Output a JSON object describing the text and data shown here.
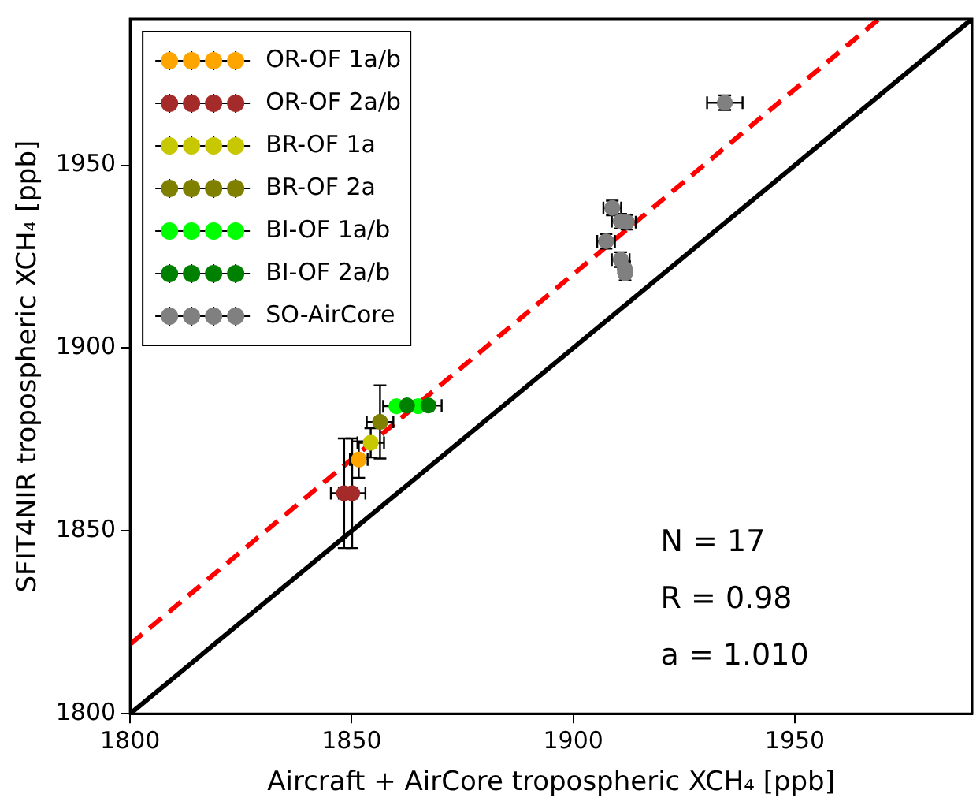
{
  "chart_data": {
    "type": "scatter",
    "xlabel": "Aircraft + AirCore tropospheric XCH₄ [ppb]",
    "ylabel": "SFIT4NIR tropospheric XCH₄ [ppb]",
    "xlim": [
      1800,
      1990
    ],
    "ylim": [
      1800,
      1990
    ],
    "xticks": [
      1800,
      1850,
      1900,
      1950
    ],
    "yticks": [
      1800,
      1850,
      1900,
      1950
    ],
    "grid": false,
    "legend": "top left",
    "marker": "circle",
    "series": [
      {
        "name": "OR-OF 1a/b",
        "color": "#ffa500",
        "x": [
          1851.6
        ],
        "values": [
          1869.5
        ],
        "errors": [
          5
        ],
        "xerrors": [
          2
        ]
      },
      {
        "name": "OR-OF 2a/b",
        "color": "#a52a2a",
        "x": [
          1848.3,
          1850.1
        ],
        "values": [
          1860.3,
          1860.3
        ],
        "errors": [
          15,
          15
        ],
        "xerrors": [
          3,
          3
        ]
      },
      {
        "name": "BR-OF 1a",
        "color": "#c8c800",
        "x": [
          1854.3
        ],
        "values": [
          1874.1
        ],
        "errors": [
          4
        ],
        "xerrors": [
          3
        ]
      },
      {
        "name": "BR-OF 2a",
        "color": "#808000",
        "x": [
          1856.4
        ],
        "values": [
          1879.8
        ],
        "errors": [
          10
        ],
        "xerrors": [
          3
        ]
      },
      {
        "name": "BI-OF 1a/b",
        "color": "#00ff00",
        "x": [
          1860.1,
          1865
        ],
        "values": [
          1884.1,
          1884.1
        ],
        "xerrors": [
          3,
          null
        ]
      },
      {
        "name": "BI-OF 2a/b",
        "color": "#008000",
        "x": [
          1862.5,
          1867.3
        ],
        "values": [
          1884.3,
          1884.3
        ],
        "xerrors": [
          null,
          3
        ]
      },
      {
        "name": "SO-AirCore",
        "color": "#808080",
        "x": [
          1934.2,
          1908.8,
          1910.7,
          1912.1,
          1907.4,
          1910.7,
          1911.6,
          1911.7
        ],
        "values": [
          1967.1,
          1938.3,
          1934.7,
          1934.4,
          1929.2,
          1924.2,
          1921.7,
          1920.5
        ],
        "errors": [
          2,
          2,
          2,
          2,
          2,
          2,
          2,
          2
        ],
        "xerrors": [
          4,
          2,
          2,
          2,
          2,
          2,
          1,
          1
        ]
      },
      {
        "type": "line",
        "color": "#ff0000",
        "line_style": "dashed",
        "marker": "none",
        "x": [
          1800,
          1969
        ],
        "values": [
          1819,
          1990
        ]
      },
      {
        "type": "line",
        "color": "#000000",
        "line_style": "solid",
        "marker": "none",
        "x": [
          1800,
          1990
        ],
        "values": [
          1800,
          1990
        ]
      }
    ],
    "annotations": [
      "N = 17",
      "R = 0.98",
      "a = 1.010"
    ]
  }
}
